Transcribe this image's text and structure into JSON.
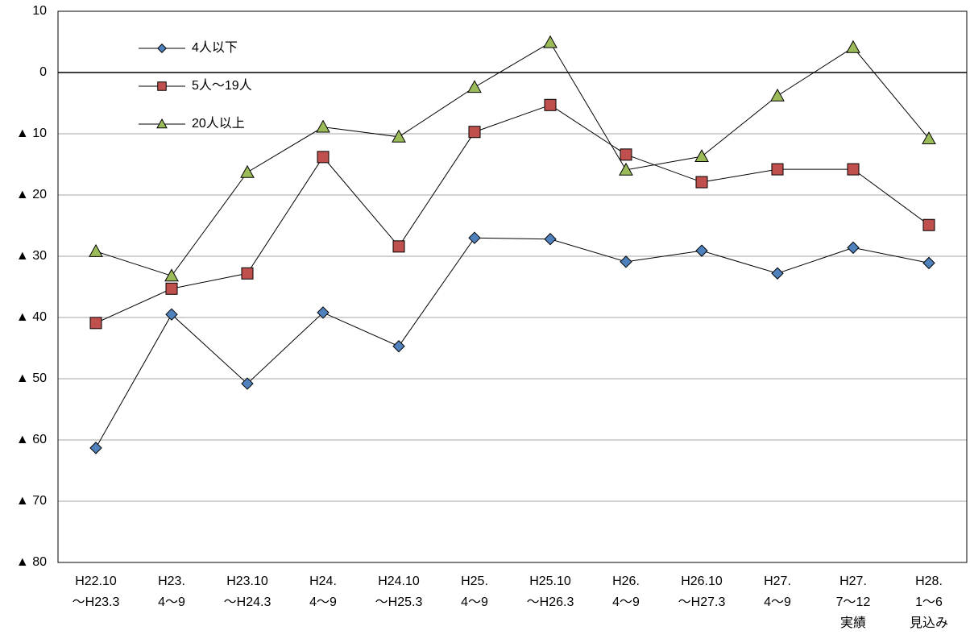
{
  "chart_data": {
    "type": "line",
    "categories": [
      [
        "H22.10",
        "～H23.3"
      ],
      [
        "H23.",
        "4～9"
      ],
      [
        "H23.10",
        "～H24.3"
      ],
      [
        "H24.",
        "4～9"
      ],
      [
        "H24.10",
        "～H25.3"
      ],
      [
        "H25.",
        "4～9"
      ],
      [
        "H25.10",
        "～H26.3"
      ],
      [
        "H26.",
        "4～9"
      ],
      [
        "H26.10",
        "～H27.3"
      ],
      [
        "H27.",
        "4～9"
      ],
      [
        "H27.",
        "7～12",
        "実績"
      ],
      [
        "H28.",
        "1～6",
        "見込み"
      ]
    ],
    "series": [
      {
        "name": "4人以下",
        "color": "#4f81bd",
        "marker": "diamond",
        "values": [
          -61.3,
          -39.5,
          -50.8,
          -39.2,
          -44.7,
          -27.0,
          -27.2,
          -30.9,
          -29.1,
          -32.8,
          -28.6,
          -31.1
        ]
      },
      {
        "name": "5人～19人",
        "color": "#c0504d",
        "marker": "square",
        "values": [
          -40.9,
          -35.3,
          -32.8,
          -13.8,
          -28.4,
          -9.7,
          -5.3,
          -13.4,
          -17.9,
          -15.8,
          -15.8,
          -24.9
        ]
      },
      {
        "name": "20人以上",
        "color": "#9bbb59",
        "marker": "triangle",
        "values": [
          -29.2,
          -33.2,
          -16.3,
          -8.9,
          -10.5,
          -2.4,
          4.9,
          -15.9,
          -13.7,
          -3.8,
          4.1,
          -10.8
        ]
      }
    ],
    "ylim": [
      -80,
      10
    ],
    "yticks": [
      10,
      0,
      {
        "value": -10,
        "label": "▲ 10"
      },
      {
        "value": -20,
        "label": "▲ 20"
      },
      {
        "value": -30,
        "label": "▲ 30"
      },
      {
        "value": -40,
        "label": "▲ 40"
      },
      {
        "value": -50,
        "label": "▲ 50"
      },
      {
        "value": -60,
        "label": "▲ 60"
      },
      {
        "value": -70,
        "label": "▲ 70"
      },
      {
        "value": -80,
        "label": "▲ 80"
      }
    ],
    "grid": true,
    "legend": "top-left"
  }
}
